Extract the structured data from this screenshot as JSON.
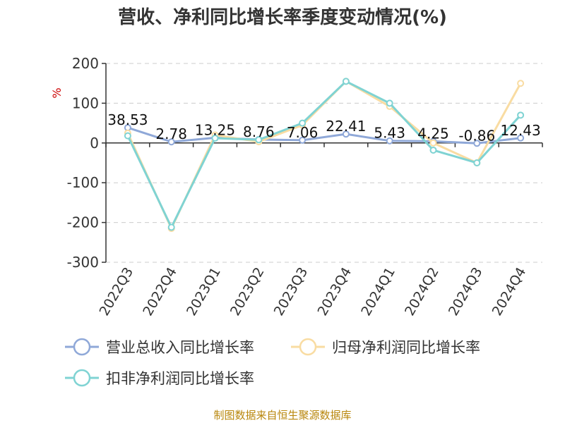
{
  "chart_data": {
    "type": "line",
    "title": "营收、净利同比增长率季度变动情况(%)",
    "ylabel": "%",
    "ylim": [
      -300,
      200
    ],
    "yticks": [
      200,
      100,
      0,
      -100,
      -200,
      -300
    ],
    "categories": [
      "2022Q3",
      "2022Q4",
      "2023Q1",
      "2023Q2",
      "2023Q3",
      "2023Q4",
      "2024Q1",
      "2024Q2",
      "2024Q3",
      "2024Q4"
    ],
    "grid": true,
    "legend_position": "bottom",
    "series": [
      {
        "name": "营业总收入同比增长率",
        "color": "#8fa8d8",
        "values": [
          38.53,
          2.78,
          13.25,
          8.76,
          7.06,
          22.41,
          5.43,
          4.25,
          -0.86,
          12.43
        ],
        "labels": [
          "38.53",
          "2.78",
          "13.25",
          "8.76",
          "7.06",
          "22.41",
          "5.43",
          "4.25",
          "-0.86",
          "12.43"
        ]
      },
      {
        "name": "归母净利润同比增长率",
        "color": "#f9dca2",
        "values": [
          25,
          -215,
          20,
          3,
          45,
          155,
          92,
          0,
          -50,
          150
        ]
      },
      {
        "name": "扣非净利润同比增长率",
        "color": "#7fd3d3",
        "values": [
          18,
          -212,
          12,
          8,
          50,
          155,
          100,
          -18,
          -50,
          70
        ]
      }
    ]
  },
  "footer": {
    "source": "制图数据来自恒生聚源数据库"
  }
}
